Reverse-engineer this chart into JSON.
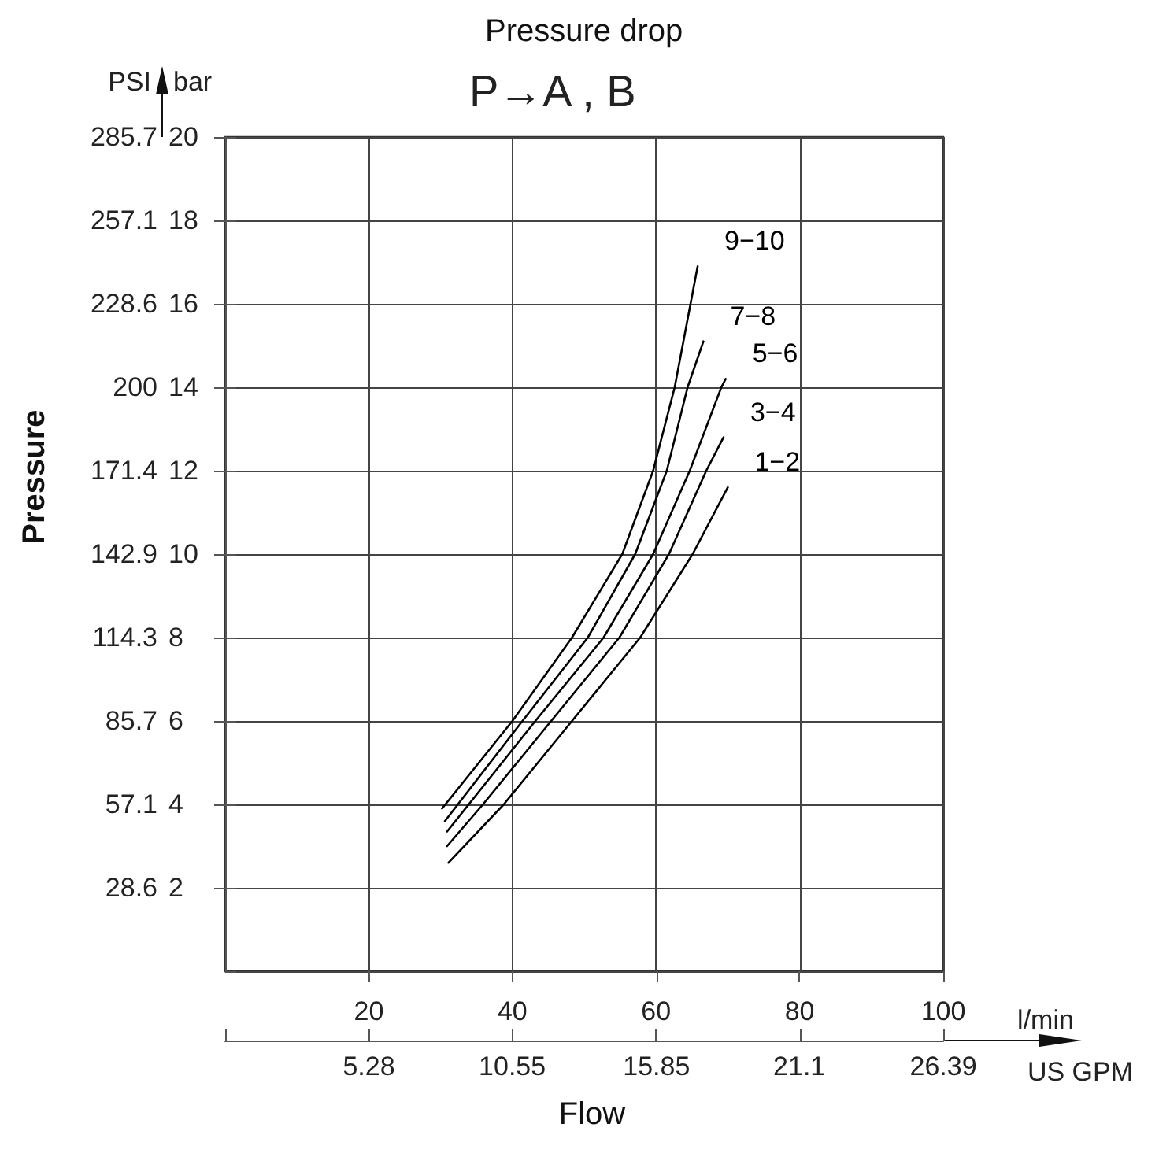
{
  "chart_data": {
    "type": "line",
    "title": "Pressure drop",
    "subtitle": "P→A , B",
    "xlabel": "Flow",
    "ylabel": "Pressure",
    "annotations": [
      "PSI",
      "bar",
      "l/min",
      "US GPM"
    ],
    "xlim": [
      0,
      100
    ],
    "xticks": [
      {
        "value": 0,
        "label": null
      },
      20,
      40,
      60,
      80,
      100
    ],
    "x2lim": [
      0,
      26.39
    ],
    "x2ticks": [
      5.28,
      10.55,
      15.85,
      21.1,
      26.39
    ],
    "ylim": [
      0,
      285.7
    ],
    "yticks": [
      28.6,
      57.1,
      85.7,
      114.3,
      142.9,
      171.4,
      200,
      228.6,
      257.1,
      285.7
    ],
    "y2lim": [
      0,
      20
    ],
    "y2ticks": [
      {
        "value": 0,
        "label": null
      },
      2,
      4,
      6,
      8,
      10,
      12,
      14,
      16,
      18,
      20
    ],
    "grid": true,
    "line_style": "solid",
    "series": [
      {
        "name": "9−10",
        "color": "#000000",
        "axis": "y2",
        "x": [
          30.2,
          40,
          48.3,
          55.3,
          59.6,
          62.6,
          65.8
        ],
        "values": [
          3.9,
          6,
          8,
          10,
          12,
          14,
          16.9
        ]
      },
      {
        "name": "7−8",
        "color": "#000000",
        "axis": "y2",
        "x": [
          30.6,
          41.4,
          50.5,
          57.1,
          61.5,
          64.4,
          66.6
        ],
        "values": [
          3.6,
          6,
          8,
          10,
          12,
          14,
          15.1
        ]
      },
      {
        "name": "5−6",
        "color": "#000000",
        "axis": "y2",
        "x": [
          30.9,
          43.2,
          52.7,
          59.6,
          64.7,
          69.1,
          69.7
        ],
        "values": [
          3.35,
          6,
          8,
          10,
          12,
          14,
          14.2
        ]
      },
      {
        "name": "3−4",
        "color": "#000000",
        "axis": "y2",
        "x": [
          30.9,
          35.9,
          45.4,
          54.9,
          61.8,
          67.0,
          69.4
        ],
        "values": [
          3.0,
          4,
          6,
          8,
          10,
          12,
          12.8
        ]
      },
      {
        "name": "1−2",
        "color": "#000000",
        "axis": "y2",
        "x": [
          31.1,
          38.8,
          48.3,
          57.8,
          65.1,
          70.0
        ],
        "values": [
          2.6,
          4,
          6,
          8,
          10,
          11.6
        ]
      }
    ]
  }
}
